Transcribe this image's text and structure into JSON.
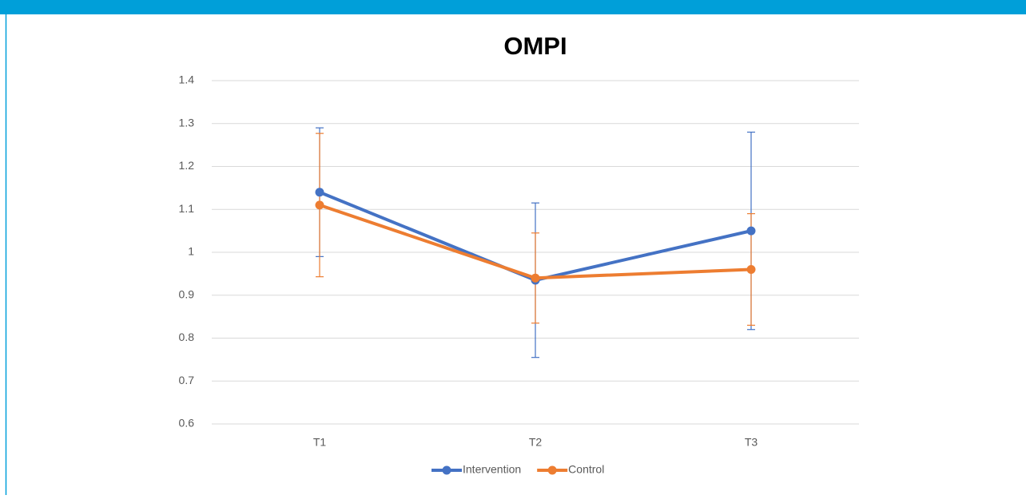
{
  "chart_data": {
    "type": "line",
    "title": "OMPI",
    "categories": [
      "T1",
      "T2",
      "T3"
    ],
    "series": [
      {
        "name": "Intervention",
        "color": "#4472c4",
        "values": [
          1.14,
          0.935,
          1.05
        ],
        "errors": [
          0.15,
          0.18,
          0.23
        ]
      },
      {
        "name": "Control",
        "color": "#ed7d31",
        "values": [
          1.11,
          0.94,
          0.96
        ],
        "errors": [
          0.167,
          0.105,
          0.13
        ]
      }
    ],
    "ylim": [
      0.6,
      1.4
    ],
    "yticks": [
      0.6,
      0.7,
      0.8,
      0.9,
      1,
      1.1,
      1.2,
      1.3,
      1.4
    ],
    "grid": true,
    "legend": "bottom"
  }
}
